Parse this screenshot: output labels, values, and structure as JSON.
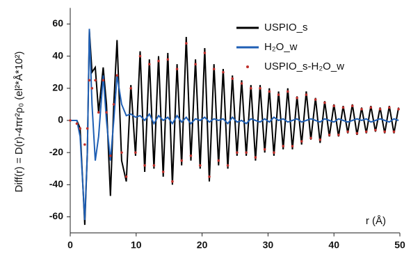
{
  "chart_data": {
    "type": "line",
    "xlabel": "r (Å)",
    "ylabel": "Diff(r) = D(r)-4πr²ρ₀ (el²*Å*10²)",
    "x": [
      0,
      1,
      1.5,
      2.2,
      2.6,
      2.9,
      3.3,
      3.8,
      4.3,
      5,
      5.5,
      6.1,
      6.6,
      7.1,
      7.8,
      8.5,
      9.2,
      9.9,
      10.6,
      11.3,
      12.0,
      12.7,
      13.4,
      14.1,
      14.8,
      15.5,
      16.2,
      16.9,
      17.6,
      18.3,
      19.0,
      19.7,
      20.4,
      21.1,
      21.8,
      22.5,
      23.2,
      23.9,
      24.6,
      25.3,
      26.0,
      26.7,
      27.4,
      28.1,
      28.8,
      29.5,
      30.2,
      30.9,
      31.6,
      32.3,
      33.0,
      33.7,
      34.4,
      35.1,
      35.8,
      36.5,
      37.2,
      37.9,
      38.6,
      39.3,
      40.0,
      40.7,
      41.4,
      42.1,
      42.8,
      43.5,
      44.2,
      44.9,
      45.6,
      46.3,
      47.0,
      47.7,
      48.4,
      49.1,
      49.8
    ],
    "series": [
      {
        "name": "USPIO_s",
        "color": "#000000",
        "mode": "line",
        "values": [
          0,
          0,
          -5,
          -65,
          -20,
          56,
          30,
          33,
          5,
          33,
          10,
          -47,
          10,
          50,
          -25,
          -38,
          22,
          -22,
          43,
          -32,
          38,
          -30,
          40,
          -35,
          42,
          -40,
          35,
          -28,
          52,
          -25,
          38,
          -30,
          45,
          -38,
          35,
          -28,
          32,
          -30,
          28,
          -22,
          25,
          -22,
          22,
          -25,
          22,
          -20,
          20,
          -22,
          18,
          -18,
          20,
          -18,
          15,
          -15,
          18,
          -12,
          14,
          -14,
          12,
          -10,
          10,
          -10,
          9,
          -8,
          10,
          -9,
          8,
          -8,
          9,
          -7,
          8,
          -8,
          9,
          -8,
          8
        ]
      },
      {
        "name": "H₂O_w",
        "color": "#1f5fb4",
        "mode": "line",
        "values": [
          0,
          0,
          -10,
          -62,
          -20,
          57,
          10,
          -25,
          -10,
          28,
          0,
          -25,
          0,
          28,
          10,
          3,
          4,
          2,
          3,
          0,
          4,
          -2,
          3,
          0,
          2,
          -2,
          3,
          -1,
          2,
          -2,
          1,
          0,
          2,
          -1,
          1,
          0,
          1,
          -2,
          2,
          -1,
          0,
          -2,
          1,
          0,
          -1,
          1,
          -1,
          2,
          0,
          1,
          -1,
          0,
          1,
          -1,
          0,
          1,
          0,
          -1,
          1,
          0,
          -1,
          1,
          0,
          -1,
          0,
          1,
          0,
          1,
          -1,
          0,
          1,
          0,
          -1,
          1,
          0
        ]
      },
      {
        "name": "USPIO_s-H₂O_w",
        "color": "#c0302c",
        "mode": "markers",
        "values": [
          0,
          -2,
          -5,
          -15,
          -5,
          25,
          20,
          25,
          5,
          25,
          5,
          -22,
          10,
          28,
          -20,
          -35,
          20,
          -20,
          40,
          -28,
          35,
          -28,
          37,
          -32,
          38,
          -38,
          32,
          -25,
          48,
          -22,
          35,
          -28,
          42,
          -35,
          32,
          -25,
          30,
          -28,
          26,
          -20,
          23,
          -20,
          20,
          -23,
          20,
          -18,
          18,
          -20,
          16,
          -16,
          18,
          -16,
          14,
          -13,
          16,
          -11,
          13,
          -12,
          11,
          -9,
          9,
          -9,
          8,
          -7,
          9,
          -8,
          7,
          -7,
          8,
          -6,
          7,
          -7,
          8,
          -7,
          7
        ]
      }
    ],
    "xlim": [
      0,
      50
    ],
    "xticks": [
      0,
      10,
      20,
      30,
      40,
      50
    ],
    "ylim": [
      -70,
      70
    ],
    "yticks": [
      -60,
      -40,
      -20,
      0,
      20,
      40,
      60
    ],
    "grid": false,
    "legend": "upper right"
  }
}
